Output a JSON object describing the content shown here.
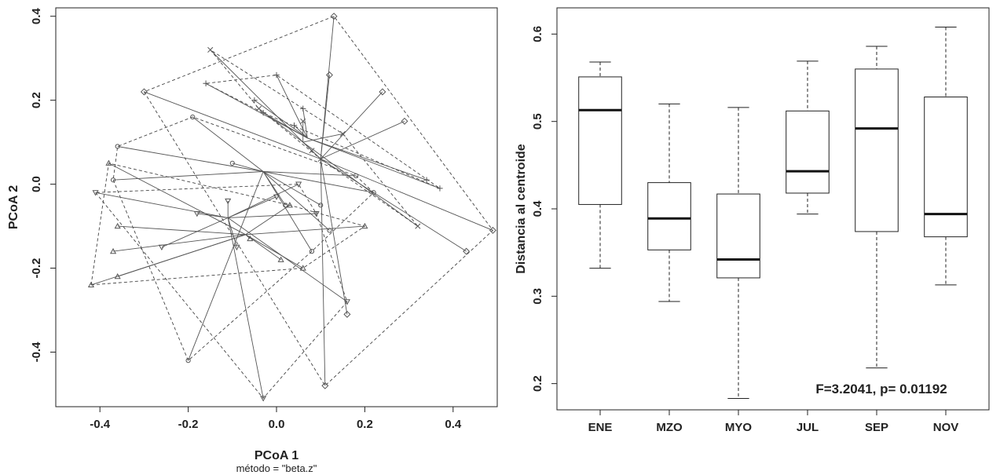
{
  "chart_data": [
    {
      "type": "scatter",
      "title": "",
      "xlabel": "PCoA 1",
      "ylabel": "PCoA 2",
      "subtitle": "método = \"beta.z\"",
      "xlim": [
        -0.5,
        0.5
      ],
      "ylim": [
        -0.53,
        0.42
      ],
      "xticks": [
        -0.4,
        -0.2,
        0.0,
        0.2,
        0.4
      ],
      "yticks": [
        -0.4,
        -0.2,
        0.0,
        0.2,
        0.4
      ],
      "tick_labels_x": [
        "-0.4",
        "-0.2",
        "0.0",
        "0.2",
        "0.4"
      ],
      "tick_labels_y": [
        "-0.4",
        "-0.2",
        "0.0",
        "0.2",
        "0.4"
      ],
      "series": [
        {
          "marker": "x",
          "centroid": [
            0.06,
            0.1
          ],
          "points": [
            [
              -0.15,
              0.32
            ],
            [
              -0.04,
              0.18
            ],
            [
              0.06,
              0.15
            ],
            [
              0.08,
              0.08
            ],
            [
              0.1,
              0.06
            ],
            [
              0.15,
              0.12
            ],
            [
              0.32,
              -0.1
            ]
          ]
        },
        {
          "marker": "+",
          "centroid": [
            0.07,
            0.11
          ],
          "points": [
            [
              -0.16,
              0.24
            ],
            [
              -0.05,
              0.2
            ],
            [
              0.0,
              0.26
            ],
            [
              0.04,
              0.14
            ],
            [
              0.06,
              0.18
            ],
            [
              0.34,
              0.01
            ],
            [
              0.37,
              -0.01
            ],
            [
              -0.03,
              0.17
            ]
          ]
        },
        {
          "marker": "diamond",
          "centroid": [
            0.1,
            0.06
          ],
          "points": [
            [
              0.12,
              0.26
            ],
            [
              0.13,
              0.4
            ],
            [
              0.24,
              0.22
            ],
            [
              0.29,
              0.15
            ],
            [
              0.49,
              -0.11
            ],
            [
              0.43,
              -0.16
            ],
            [
              0.16,
              -0.31
            ],
            [
              0.11,
              -0.48
            ],
            [
              -0.3,
              0.22
            ]
          ]
        },
        {
          "marker": "circle",
          "centroid": [
            -0.03,
            0.03
          ],
          "points": [
            [
              -0.36,
              0.09
            ],
            [
              -0.37,
              0.01
            ],
            [
              -0.19,
              0.16
            ],
            [
              -0.1,
              0.05
            ],
            [
              0.02,
              -0.05
            ],
            [
              0.1,
              -0.05
            ],
            [
              0.12,
              -0.11
            ],
            [
              0.18,
              0.02
            ],
            [
              0.22,
              -0.02
            ],
            [
              0.08,
              -0.16
            ],
            [
              -0.2,
              -0.42
            ]
          ]
        },
        {
          "marker": "triangle",
          "centroid": [
            -0.07,
            -0.12
          ],
          "points": [
            [
              -0.38,
              0.05
            ],
            [
              -0.36,
              -0.1
            ],
            [
              -0.37,
              -0.16
            ],
            [
              -0.36,
              -0.22
            ],
            [
              -0.42,
              -0.24
            ],
            [
              -0.06,
              -0.13
            ],
            [
              0.01,
              -0.18
            ],
            [
              0.06,
              -0.2
            ],
            [
              0.2,
              -0.1
            ],
            [
              0.03,
              -0.05
            ]
          ]
        },
        {
          "marker": "triangle-down",
          "centroid": [
            -0.11,
            -0.08
          ],
          "points": [
            [
              -0.41,
              -0.02
            ],
            [
              -0.26,
              -0.15
            ],
            [
              -0.11,
              -0.04
            ],
            [
              -0.09,
              -0.15
            ],
            [
              0.0,
              -0.03
            ],
            [
              0.05,
              0.0
            ],
            [
              0.09,
              -0.07
            ],
            [
              0.16,
              -0.28
            ],
            [
              -0.03,
              -0.51
            ],
            [
              -0.18,
              -0.07
            ]
          ]
        }
      ]
    },
    {
      "type": "box",
      "title": "",
      "xlabel": "",
      "ylabel": "Distancia al centroide",
      "ylim": [
        0.17,
        0.63
      ],
      "yticks": [
        0.2,
        0.3,
        0.4,
        0.5,
        0.6
      ],
      "tick_labels_y": [
        "0.2",
        "0.3",
        "0.4",
        "0.5",
        "0.6"
      ],
      "categories": [
        "ENE",
        "MZO",
        "MYO",
        "JUL",
        "SEP",
        "NOV"
      ],
      "boxes": [
        {
          "min": 0.332,
          "q1": 0.405,
          "median": 0.513,
          "q3": 0.551,
          "max": 0.568
        },
        {
          "min": 0.294,
          "q1": 0.353,
          "median": 0.389,
          "q3": 0.43,
          "max": 0.52
        },
        {
          "min": 0.183,
          "q1": 0.321,
          "median": 0.342,
          "q3": 0.417,
          "max": 0.516
        },
        {
          "min": 0.394,
          "q1": 0.418,
          "median": 0.443,
          "q3": 0.512,
          "max": 0.569
        },
        {
          "min": 0.218,
          "q1": 0.374,
          "median": 0.492,
          "q3": 0.56,
          "max": 0.586
        },
        {
          "min": 0.313,
          "q1": 0.368,
          "median": 0.394,
          "q3": 0.528,
          "max": 0.608
        }
      ],
      "annotation": "F=3.2041, p= 0.01192"
    }
  ]
}
